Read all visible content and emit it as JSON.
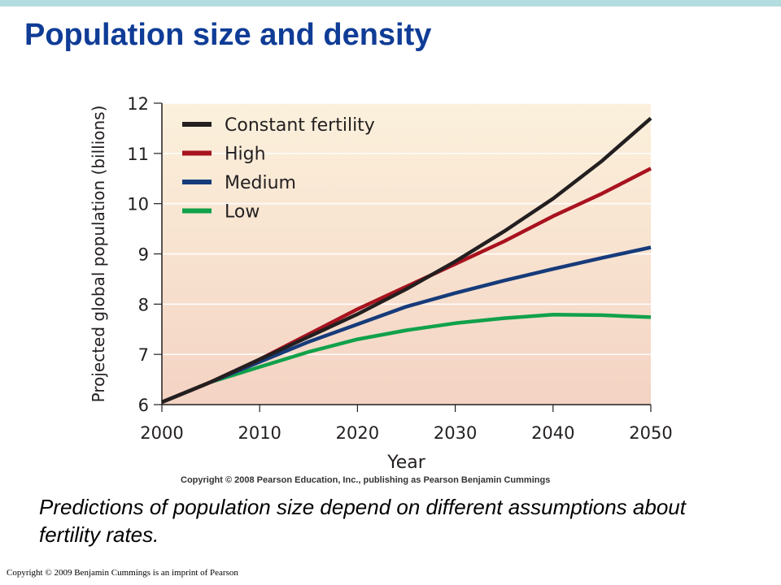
{
  "slide": {
    "title": "Population size and density",
    "caption": "Predictions of population size depend on different assumptions about fertility rates.",
    "footer": "Copyright © 2009 Benjamin Cummings is an imprint of Pearson",
    "accent_color": "#0f3c96",
    "top_bar_color": "#b4dde0"
  },
  "chart_data": {
    "type": "line",
    "title": "",
    "xlabel": "Year",
    "ylabel": "Projected global population (billions)",
    "copyright": "Copyright © 2008 Pearson Education, Inc., publishing as Pearson Benjamin Cummings",
    "xlim": [
      2000,
      2050
    ],
    "ylim": [
      6,
      12
    ],
    "xticks": [
      "2000",
      "2010",
      "2020",
      "2030",
      "2040",
      "2050"
    ],
    "yticks": [
      "6",
      "7",
      "8",
      "9",
      "10",
      "11",
      "12"
    ],
    "grid": true,
    "legend_position": "top-left",
    "background_gradient": [
      "#fbf1dc",
      "#f4d3c3"
    ],
    "x": [
      2000,
      2005,
      2010,
      2015,
      2020,
      2025,
      2030,
      2035,
      2040,
      2045,
      2050
    ],
    "series": [
      {
        "name": "Constant fertility",
        "color": "#231f20",
        "values": [
          6.05,
          6.45,
          6.9,
          7.35,
          7.8,
          8.3,
          8.85,
          9.45,
          10.1,
          10.85,
          11.7
        ]
      },
      {
        "name": "High",
        "color": "#a8121e",
        "values": [
          6.05,
          6.45,
          6.9,
          7.4,
          7.9,
          8.35,
          8.8,
          9.25,
          9.75,
          10.2,
          10.7
        ]
      },
      {
        "name": "Medium",
        "color": "#163b7a",
        "values": [
          6.05,
          6.45,
          6.85,
          7.25,
          7.6,
          7.95,
          8.22,
          8.47,
          8.7,
          8.92,
          9.13
        ]
      },
      {
        "name": "Low",
        "color": "#11a14b",
        "values": [
          6.05,
          6.45,
          6.75,
          7.05,
          7.3,
          7.48,
          7.62,
          7.72,
          7.79,
          7.78,
          7.74
        ]
      }
    ]
  }
}
